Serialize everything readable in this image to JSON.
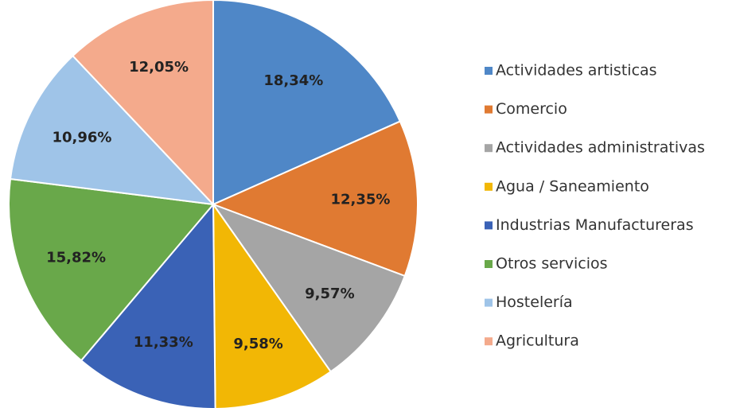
{
  "chart_data": {
    "type": "pie",
    "categories": [
      "Actividades artisticas",
      "Comercio",
      "Actividades administrativas",
      "Agua / Saneamiento",
      "Industrias Manufactureras",
      "Otros servicios",
      "Hostelería",
      "Agricultura"
    ],
    "values": [
      18.34,
      12.35,
      9.57,
      9.58,
      11.33,
      15.82,
      10.96,
      12.05
    ],
    "value_labels": [
      "18,34%",
      "12,35%",
      "9,57%",
      "9,58%",
      "11,33%",
      "15,82%",
      "10,96%",
      "12,05%"
    ],
    "colors": [
      "#4f87c7",
      "#e07a32",
      "#a5a5a5",
      "#f2b705",
      "#3a62b6",
      "#69a84a",
      "#9fc4e8",
      "#f4aa8c"
    ],
    "legend": "right"
  }
}
